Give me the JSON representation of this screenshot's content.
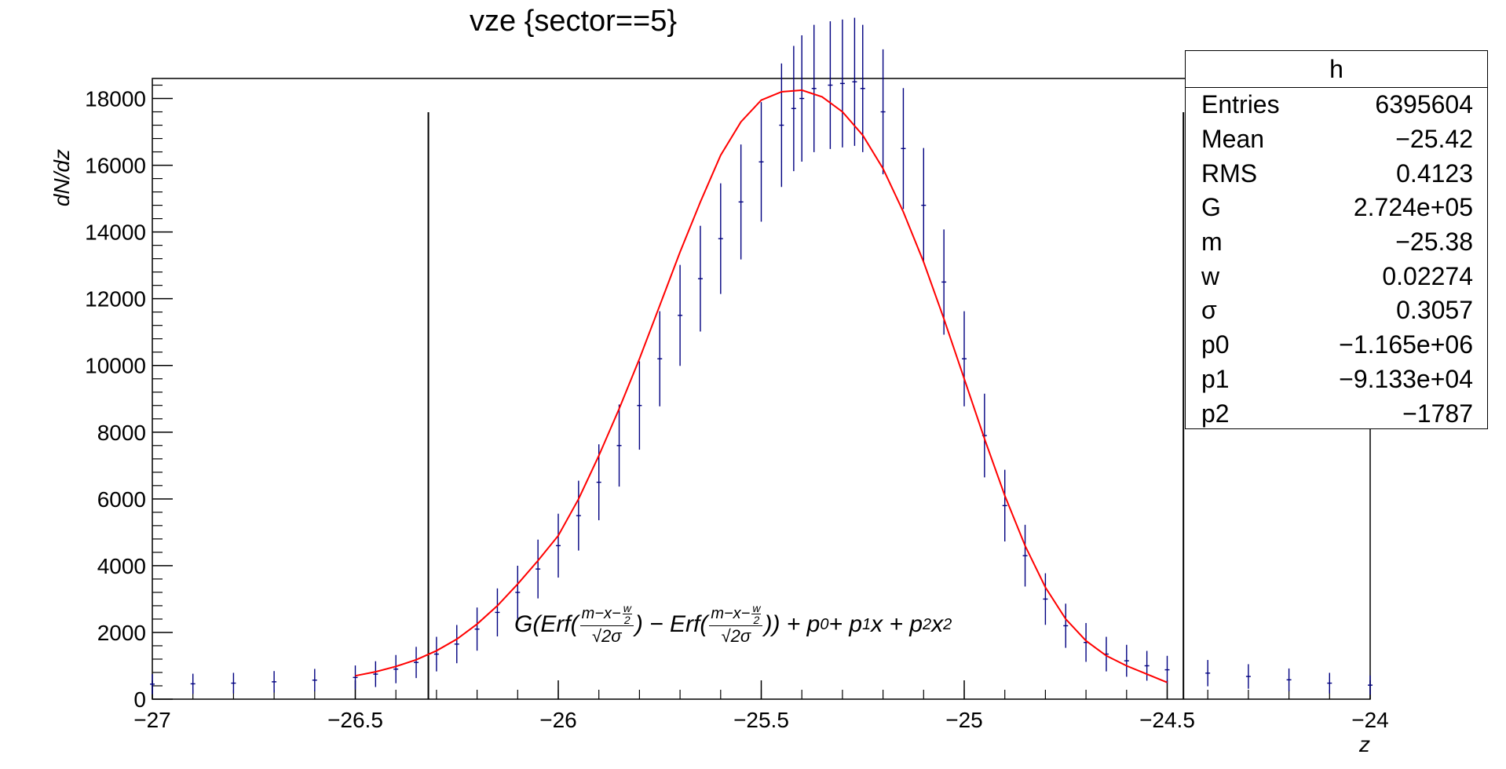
{
  "title": "vze {sector==5}",
  "chart_data": {
    "type": "scatter",
    "title": "vze {sector==5}",
    "xlabel": "z",
    "ylabel": "dN/dz",
    "xlim": [
      -27,
      -24
    ],
    "ylim": [
      0,
      18600
    ],
    "x_ticks": [
      -27,
      -26.5,
      -26,
      -25.5,
      -25,
      -24.5,
      -24
    ],
    "x_tick_labels": [
      "−27",
      "−26.5",
      "−26",
      "−25.5",
      "−25",
      "−24.5",
      "−24"
    ],
    "y_ticks": [
      0,
      2000,
      4000,
      6000,
      8000,
      10000,
      12000,
      14000,
      16000,
      18000
    ],
    "y_tick_labels": [
      "0",
      "2000",
      "4000",
      "6000",
      "8000",
      "10000",
      "12000",
      "14000",
      "16000",
      "18000"
    ],
    "series": [
      {
        "kind": "histogram-points",
        "color": "#000080",
        "x": [
          -27.0,
          -26.9,
          -26.8,
          -26.7,
          -26.6,
          -26.5,
          -26.45,
          -26.4,
          -26.35,
          -26.3,
          -26.25,
          -26.2,
          -26.15,
          -26.1,
          -26.05,
          -26.0,
          -25.95,
          -25.9,
          -25.85,
          -25.8,
          -25.75,
          -25.7,
          -25.65,
          -25.6,
          -25.55,
          -25.5,
          -25.45,
          -25.42,
          -25.4,
          -25.37,
          -25.33,
          -25.3,
          -25.27,
          -25.25,
          -25.2,
          -25.15,
          -25.1,
          -25.05,
          -25.0,
          -24.95,
          -24.9,
          -24.85,
          -24.8,
          -24.75,
          -24.7,
          -24.65,
          -24.6,
          -24.55,
          -24.5,
          -24.4,
          -24.3,
          -24.2,
          -24.1,
          -24.0
        ],
        "y": [
          450,
          460,
          480,
          520,
          570,
          650,
          750,
          900,
          1100,
          1350,
          1650,
          2100,
          2600,
          3200,
          3900,
          4600,
          5500,
          6500,
          7600,
          8800,
          10200,
          11500,
          12600,
          13800,
          14900,
          16100,
          17200,
          17700,
          18000,
          18300,
          18400,
          18450,
          18500,
          18300,
          17600,
          16500,
          14800,
          12500,
          10200,
          7900,
          5800,
          4300,
          3000,
          2200,
          1700,
          1350,
          1150,
          1000,
          880,
          780,
          680,
          580,
          480,
          420
        ]
      },
      {
        "kind": "fit-curve",
        "color": "#ff0000",
        "x": [
          -26.5,
          -26.45,
          -26.4,
          -26.35,
          -26.3,
          -26.25,
          -26.2,
          -26.15,
          -26.1,
          -26.05,
          -26.0,
          -25.95,
          -25.9,
          -25.85,
          -25.8,
          -25.75,
          -25.7,
          -25.65,
          -25.6,
          -25.55,
          -25.5,
          -25.45,
          -25.4,
          -25.35,
          -25.3,
          -25.25,
          -25.2,
          -25.15,
          -25.1,
          -25.05,
          -25.0,
          -24.95,
          -24.9,
          -24.85,
          -24.8,
          -24.75,
          -24.7,
          -24.65,
          -24.6,
          -24.55,
          -24.5
        ],
        "y": [
          700,
          820,
          980,
          1180,
          1450,
          1800,
          2250,
          2800,
          3450,
          4150,
          4900,
          6000,
          7300,
          8700,
          10200,
          11800,
          13400,
          14900,
          16300,
          17300,
          17950,
          18200,
          18250,
          18050,
          17600,
          16900,
          15900,
          14600,
          13100,
          11400,
          9600,
          7800,
          6100,
          4600,
          3350,
          2400,
          1750,
          1300,
          1000,
          750,
          500
        ]
      }
    ],
    "vertical_lines_x": [
      -26.32,
      -24.46
    ]
  },
  "stats_box": {
    "title": "h",
    "rows": [
      {
        "label": "Entries",
        "value": "6395604"
      },
      {
        "label": "Mean",
        "value": "−25.42"
      },
      {
        "label": "RMS",
        "value": "0.4123"
      },
      {
        "label": "G",
        "value": "2.724e+05"
      },
      {
        "label": "m",
        "value": "−25.38"
      },
      {
        "label": "w",
        "value": "0.02274"
      },
      {
        "label": "σ",
        "value": "0.3057"
      },
      {
        "label": "p0",
        "value": "−1.165e+06"
      },
      {
        "label": "p1",
        "value": "−9.133e+04"
      },
      {
        "label": "p2",
        "value": "−1787"
      }
    ]
  },
  "formula": {
    "g_erf": "G(Erf(",
    "num_part": "m−x−",
    "w": "w",
    "two": "2",
    "den": "√2σ",
    "mid": ") − Erf(",
    "end": ")) + p",
    "sub0": "0",
    "plus_p": " + p",
    "sub1": "1",
    "x_plus_p": "x + p",
    "sub2": "2",
    "x": "x",
    "sup2": "2"
  }
}
